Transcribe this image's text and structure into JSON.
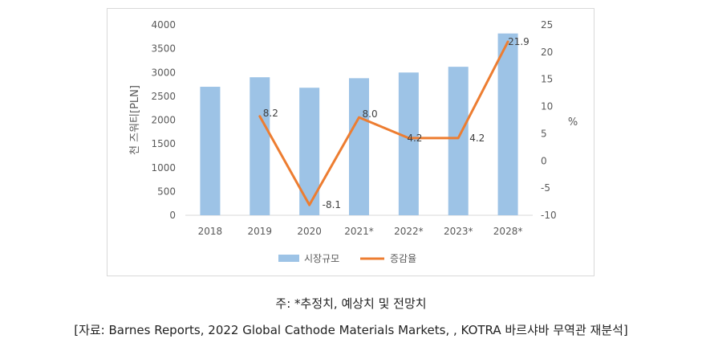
{
  "chart_data": {
    "type": "bar",
    "categories": [
      "2018",
      "2019",
      "2020",
      "2021*",
      "2022*",
      "2023*",
      "2028*"
    ],
    "series": [
      {
        "name": "시장규모",
        "type": "bar",
        "axis": "left",
        "color": "#9dc3e6",
        "values": [
          2700,
          2900,
          2680,
          2880,
          3000,
          3120,
          3820
        ]
      },
      {
        "name": "증감율",
        "type": "line",
        "axis": "right",
        "color": "#ed7d31",
        "values": [
          null,
          8.2,
          -8.1,
          8.0,
          4.2,
          4.2,
          21.9
        ],
        "labels": [
          "",
          "8.2",
          "-8.1",
          "8.0",
          "4.2",
          "4.2",
          "21.9"
        ]
      }
    ],
    "ylabel": "천 즈워티[PLN]",
    "y2label": "%",
    "ylim": [
      0,
      4000
    ],
    "yticks": [
      0,
      500,
      1000,
      1500,
      2000,
      2500,
      3000,
      3500,
      4000
    ],
    "y2lim": [
      -10,
      25
    ],
    "y2ticks": [
      -10,
      -5,
      0,
      5,
      10,
      15,
      20,
      25
    ],
    "grid": false,
    "legend": "bottom"
  },
  "notes": {
    "note": "주: *추정치, 예상치 및 전망치",
    "source": "[자료: Barnes Reports, 2022 Global Cathode Materials Markets, , KOTRA 바르샤바 무역관 재분석]"
  }
}
